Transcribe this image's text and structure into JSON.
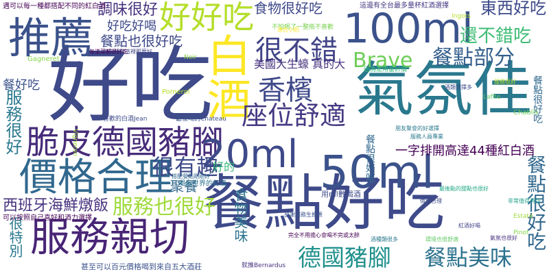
{
  "words": [
    {
      "text": "好吃",
      "color": "#3e4a89"
    },
    {
      "text": "餐點好吃",
      "color": "#3e4a89"
    },
    {
      "text": "氣氛佳",
      "color": "#2a788e"
    },
    {
      "text": "100ml",
      "color": "#3b528b"
    },
    {
      "text": "推薦",
      "color": "#3b528b"
    },
    {
      "text": "服務親切",
      "color": "#482576"
    },
    {
      "text": "脆皮德國豬腳",
      "color": "#472c7a"
    },
    {
      "text": "價格合理",
      "color": "#31688e"
    },
    {
      "text": "20ml",
      "color": "#3e4a89"
    },
    {
      "text": "50ml",
      "color": "#3b528b"
    },
    {
      "text": "好好吃",
      "color": "#b5de2b"
    },
    {
      "text": "白酒",
      "color": "#fde725"
    },
    {
      "text": "很不錯",
      "color": "#414487"
    },
    {
      "text": "香檳",
      "color": "#3e4989"
    },
    {
      "text": "座位舒適",
      "color": "#443983"
    },
    {
      "text": "餐點部分",
      "color": "#35608d"
    },
    {
      "text": "Brave",
      "color": "#6ece58"
    },
    {
      "text": "德國豬腳",
      "color": "#21918c"
    },
    {
      "text": "餐點美味",
      "color": "#2c728e"
    },
    {
      "text": "服務也很好",
      "color": "#9fda3a"
    },
    {
      "text": "很有趣",
      "color": "#3e4a89"
    },
    {
      "text": "西班牙海鮮燉飯",
      "color": "#46327e"
    },
    {
      "text": "服務很好",
      "color": "#2a788e"
    },
    {
      "text": "食物美味",
      "color": "#2c728e"
    },
    {
      "text": "餐點很好吃",
      "color": "#31688e"
    },
    {
      "text": "東西好吃",
      "color": "#3e4a89"
    },
    {
      "text": "還不錯吃",
      "color": "#3ebc74"
    },
    {
      "text": "餐點很好吃",
      "color": "#31688e"
    },
    {
      "text": "調味很好",
      "color": "#46327e"
    },
    {
      "text": "好吃好喝",
      "color": "#3e4a89"
    },
    {
      "text": "餐點也很好吃",
      "color": "#3e4989"
    },
    {
      "text": "食物很好吃",
      "color": "#3e4989"
    },
    {
      "text": "美國大生蠔 真的大",
      "color": "#46327e"
    },
    {
      "text": "聚餐",
      "color": "#31688e"
    },
    {
      "text": "一字排開高達44種紅白酒",
      "color": "#440154"
    },
    {
      "text": "好的",
      "color": "#35b779"
    },
    {
      "text": "餐點很好吃",
      "color": "#31688e"
    },
    {
      "text": "很特別",
      "color": "#2a788e"
    },
    {
      "text": "餐好吃",
      "color": "#3b528b"
    },
    {
      "text": "遇可以每一種都搭配不同的紅白酒",
      "color": "#440154"
    },
    {
      "text": "這邊有全台最多量杯紅酒選擇",
      "color": "#443983"
    },
    {
      "text": "用ml數喝酒",
      "color": "#3e4a89"
    },
    {
      "text": "可以按照自己喜好和酒力選擇",
      "color": "#440154"
    },
    {
      "text": "甚至可以百元價格喝到來自五大酒莊",
      "color": "#3b528b"
    },
    {
      "text": "喝遍世界的紅酒",
      "color": "#2c728e"
    },
    {
      "text": "完全不用擔心會喝不完或太醉",
      "color": "#440154"
    },
    {
      "text": "Gagneret",
      "color": "#85d54a"
    },
    {
      "text": "Noir",
      "color": "#8fd744"
    },
    {
      "text": "Pomerol",
      "color": "#b5de2b"
    },
    {
      "text": "Vigneron",
      "color": "#9fda3a"
    },
    {
      "text": "Lafite",
      "color": "#5ec962"
    },
    {
      "text": "Chablis",
      "color": "#6ece58"
    },
    {
      "text": "Estate",
      "color": "#9fda3a"
    },
    {
      "text": "Pinot",
      "color": "#85d54a"
    },
    {
      "text": "Ingots",
      "color": "#b5de2b"
    },
    {
      "text": "喜歡的白酒Jean",
      "color": "#3e4a89"
    },
    {
      "text": "就推Bernardus",
      "color": "#46327e"
    },
    {
      "text": "最後喝的Chateau",
      "color": "#3b528b"
    },
    {
      "text": "價格合理",
      "color": "#3e4a89"
    },
    {
      "text": "服務人員專業",
      "color": "#2a788e"
    },
    {
      "text": "氣氛也很好",
      "color": "#46327e"
    },
    {
      "text": "酒類選擇多",
      "color": "#3e4a89"
    },
    {
      "text": "沒有想到這裡那麼好",
      "color": "#414487"
    },
    {
      "text": "因為是用量計價",
      "color": "#35b779"
    },
    {
      "text": "不怕喝了一整瓶不喜歡",
      "color": "#7ad151"
    },
    {
      "text": "服務很好",
      "color": "#b5de2b"
    },
    {
      "text": "環境也很舒適",
      "color": "#5ec962"
    },
    {
      "text": "酒種類很多",
      "color": "#2a788e"
    },
    {
      "text": "感謝服務生推薦",
      "color": "#3b528b"
    },
    {
      "text": "非常值得再訪",
      "color": "#1f9e89"
    },
    {
      "text": "每道菜都很好吃",
      "color": "#440154"
    },
    {
      "text": "最後點的甜點也很好",
      "color": "#22a884"
    },
    {
      "text": "朋友聚會的好選擇",
      "color": "#2a788e"
    },
    {
      "text": "紅酒好喝",
      "color": "#414487"
    },
    {
      "text": "適合小酌",
      "color": "#fde725"
    },
    {
      "text": "搭配餐點剛剛好",
      "color": "#31688e"
    }
  ]
}
